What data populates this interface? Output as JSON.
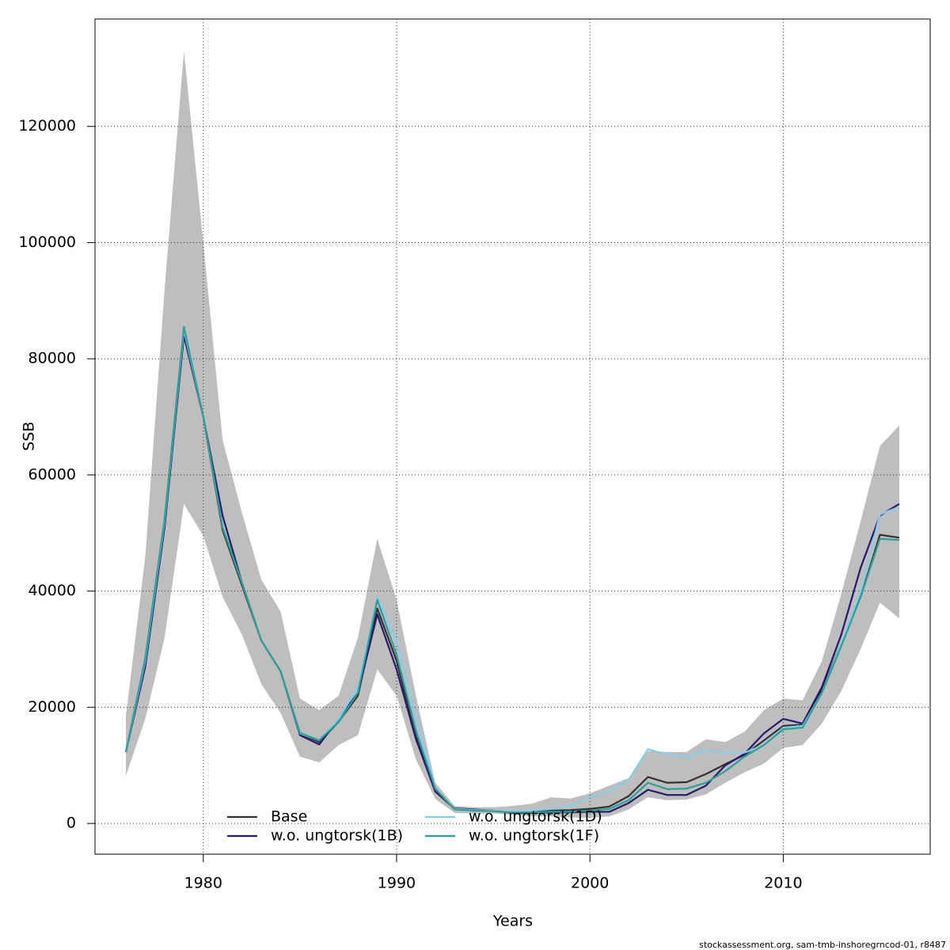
{
  "chart_data": {
    "type": "line",
    "x_label": "Years",
    "y_label": "SSB",
    "footer": "stockassessment.org, sam-tmb-inshoregrncod-01, r8487",
    "x": [
      1976,
      1977,
      1978,
      1979,
      1980,
      1981,
      1982,
      1983,
      1984,
      1985,
      1986,
      1987,
      1988,
      1989,
      1990,
      1991,
      1992,
      1993,
      1994,
      1995,
      1996,
      1997,
      1998,
      1999,
      2000,
      2001,
      2002,
      2003,
      2004,
      2005,
      2006,
      2007,
      2008,
      2009,
      2010,
      2011,
      2012,
      2013,
      2014,
      2015,
      2016
    ],
    "xlim": [
      1974.4,
      2017.6
    ],
    "ylim": [
      -5300,
      138500
    ],
    "xticks": [
      1980,
      1990,
      2000,
      2010
    ],
    "yticks": [
      0,
      20000,
      40000,
      60000,
      80000,
      100000,
      120000
    ],
    "grid": true,
    "legend": "bottom",
    "band": {
      "color": "#bebebe",
      "upper": [
        18500,
        46000,
        92000,
        133000,
        100000,
        66000,
        53500,
        42000,
        36500,
        21500,
        19500,
        22000,
        32000,
        49000,
        38500,
        22000,
        7000,
        3000,
        2800,
        2800,
        3000,
        3400,
        4500,
        4300,
        5200,
        6500,
        7800,
        12500,
        12300,
        12300,
        14500,
        14000,
        15800,
        19500,
        21500,
        21200,
        28000,
        39500,
        52000,
        65000,
        68500
      ],
      "lower": [
        8200,
        18000,
        32000,
        55000,
        49500,
        39000,
        32500,
        24000,
        19000,
        11500,
        10500,
        13500,
        15200,
        26500,
        22000,
        11000,
        4200,
        1800,
        1700,
        1700,
        1500,
        1200,
        1200,
        1000,
        1000,
        1200,
        2400,
        4500,
        4000,
        4100,
        5000,
        7000,
        8800,
        10300,
        13000,
        13500,
        17200,
        22800,
        30000,
        38000,
        35300
      ]
    },
    "series": [
      {
        "name": "Base",
        "color": "#333333",
        "values": [
          12300,
          28000,
          52000,
          85000,
          70000,
          50500,
          41000,
          31500,
          26200,
          15500,
          14000,
          17500,
          22000,
          37000,
          28000,
          15000,
          5500,
          2500,
          2300,
          2200,
          2000,
          2000,
          2200,
          2300,
          2500,
          2900,
          4700,
          8000,
          7000,
          7100,
          8500,
          10200,
          11800,
          14300,
          16800,
          17000,
          23000,
          31000,
          39000,
          49700,
          49200
        ]
      },
      {
        "name": "w.o. ungtorsk(1B)",
        "color": "#261a6e",
        "values": [
          12300,
          27000,
          51000,
          84000,
          70000,
          53000,
          41500,
          31500,
          26200,
          15200,
          13600,
          18000,
          22500,
          36000,
          26500,
          14500,
          5500,
          2600,
          2400,
          2200,
          1800,
          1800,
          1900,
          1900,
          2000,
          2000,
          3500,
          5800,
          4900,
          4900,
          6500,
          10000,
          12000,
          15500,
          18000,
          17200,
          23500,
          32500,
          44000,
          53000,
          55000
        ]
      },
      {
        "name": "w.o. ungtorsk(1D)",
        "color": "#86cdec",
        "values": [
          12300,
          28000,
          52000,
          85000,
          70000,
          51000,
          41500,
          31500,
          26200,
          15500,
          14300,
          18000,
          23500,
          39000,
          31500,
          18000,
          6000,
          2500,
          2300,
          2200,
          2100,
          2200,
          2500,
          3000,
          4500,
          5500,
          7500,
          12800,
          11800,
          11500,
          12500,
          12200,
          12200,
          13500,
          16500,
          16800,
          22500,
          31000,
          40000,
          53200,
          54500
        ]
      },
      {
        "name": "w.o. ungtorsk(1F)",
        "color": "#2e9f96",
        "values": [
          12300,
          28500,
          52500,
          85500,
          70000,
          51000,
          41500,
          31500,
          26200,
          15600,
          14300,
          17500,
          22500,
          38500,
          29000,
          16000,
          6000,
          2400,
          2200,
          2100,
          1900,
          1900,
          2000,
          2000,
          2200,
          2500,
          4000,
          7000,
          5900,
          6000,
          7000,
          9000,
          11500,
          13500,
          16200,
          16500,
          22500,
          30500,
          39000,
          49000,
          48800
        ]
      }
    ]
  }
}
